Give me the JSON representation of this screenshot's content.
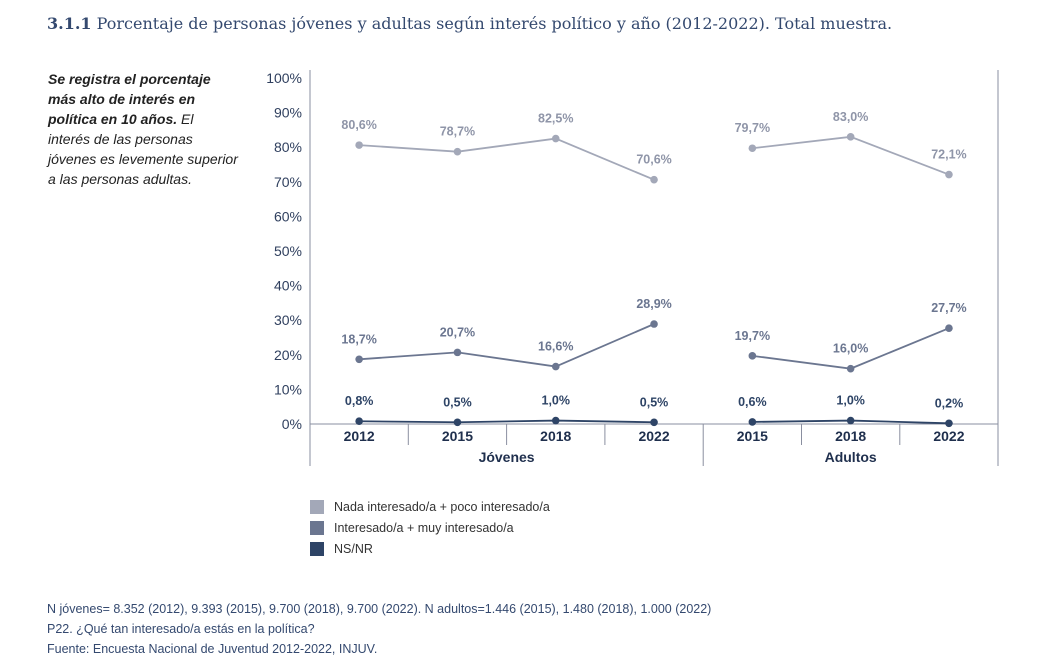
{
  "title": {
    "number": "3.1.1",
    "text": "Porcentaje de personas jóvenes y adultas según interés político y año (2012-2022). Total muestra."
  },
  "note": {
    "bold": "Se registra el porcentaje más alto de interés en política en 10 años.",
    "regular": "El interés de las personas jóvenes es levemente superior a las personas adultas."
  },
  "chart_data": {
    "type": "line",
    "ylim": [
      0,
      100
    ],
    "y_ticks": [
      "0%",
      "10%",
      "20%",
      "30%",
      "40%",
      "50%",
      "60%",
      "70%",
      "80%",
      "90%",
      "100%"
    ],
    "groups": [
      {
        "name": "Jóvenes",
        "categories": [
          "2012",
          "2015",
          "2018",
          "2022"
        ]
      },
      {
        "name": "Adultos",
        "categories": [
          "2015",
          "2018",
          "2022"
        ]
      }
    ],
    "series": [
      {
        "name": "Nada interesado/a + poco interesado/a",
        "color": "#a3a8b8",
        "values": {
          "Jóvenes": [
            80.6,
            78.7,
            82.5,
            70.6
          ],
          "Adultos": [
            79.7,
            83.0,
            72.1
          ]
        },
        "labels": {
          "Jóvenes": [
            "80,6%",
            "78,7%",
            "82,5%",
            "70,6%"
          ],
          "Adultos": [
            "79,7%",
            "83,0%",
            "72,1%"
          ]
        }
      },
      {
        "name": "Interesado/a + muy interesado/a",
        "color": "#6b7690",
        "values": {
          "Jóvenes": [
            18.7,
            20.7,
            16.6,
            28.9
          ],
          "Adultos": [
            19.7,
            16.0,
            27.7
          ]
        },
        "labels": {
          "Jóvenes": [
            "18,7%",
            "20,7%",
            "16,6%",
            "28,9%"
          ],
          "Adultos": [
            "19,7%",
            "16,0%",
            "27,7%"
          ]
        }
      },
      {
        "name": "NS/NR",
        "color": "#2e4466",
        "values": {
          "Jóvenes": [
            0.8,
            0.5,
            1.0,
            0.5
          ],
          "Adultos": [
            0.6,
            1.0,
            0.2
          ]
        },
        "labels": {
          "Jóvenes": [
            "0,8%",
            "0,5%",
            "1,0%",
            "0,5%"
          ],
          "Adultos": [
            "0,6%",
            "1,0%",
            "0,2%"
          ]
        }
      }
    ]
  },
  "footer": {
    "line1": "N jóvenes= 8.352 (2012), 9.393 (2015), 9.700 (2018), 9.700 (2022). N adultos=1.446 (2015), 1.480 (2018), 1.000 (2022)",
    "line2": "P22. ¿Qué tan interesado/a estás en la política?",
    "line3": "Fuente: Encuesta Nacional de Juventud 2012-2022, INJUV."
  }
}
